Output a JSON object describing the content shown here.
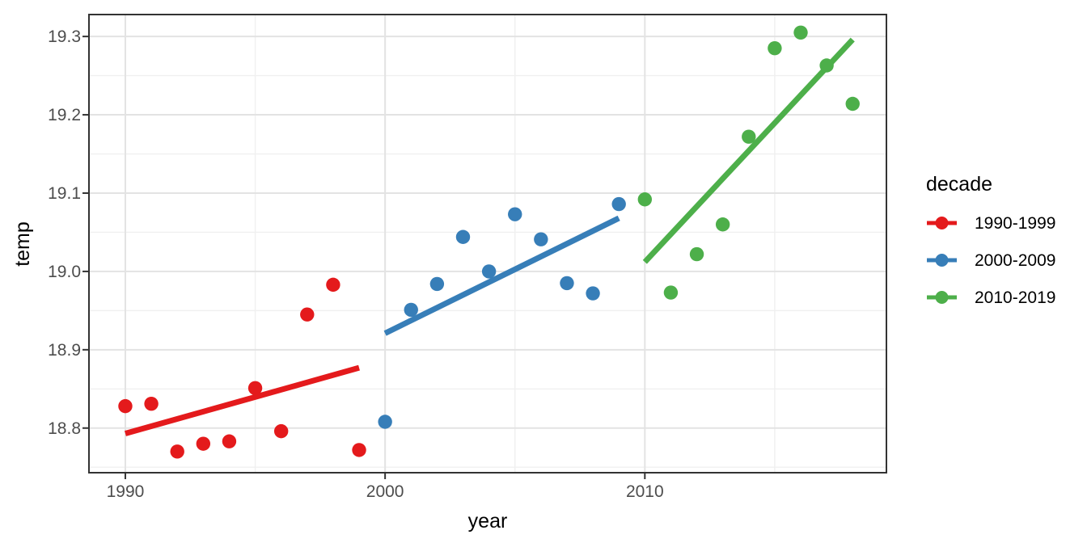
{
  "figure": {
    "background": "#FFFFFF",
    "theme": {
      "panel_border_color": "#333333",
      "grid_major_color": "#E3E3E3",
      "grid_minor_color": "#F0F0F0",
      "tick_mark_color": "#333333",
      "tick_label_color": "#4D4D4D",
      "axis_title_color": "#000000"
    }
  },
  "chart_data": {
    "type": "scatter",
    "title": "",
    "xlabel": "year",
    "ylabel": "temp",
    "xlim": [
      1988.6,
      2019.3
    ],
    "ylim": [
      18.743,
      19.328
    ],
    "grid": true,
    "x_tick_values": [
      1990,
      2000,
      2010
    ],
    "x_tick_labels": [
      "1990",
      "2000",
      "2010"
    ],
    "x_minor_values": [
      1995,
      2005,
      2015
    ],
    "y_tick_values": [
      18.8,
      18.9,
      19.0,
      19.1,
      19.2,
      19.3
    ],
    "y_tick_labels": [
      "18.8",
      "18.9",
      "19.0",
      "19.1",
      "19.2",
      "19.3"
    ],
    "y_minor_values": [
      18.75,
      18.85,
      18.95,
      19.05,
      19.15,
      19.25
    ],
    "legend": {
      "title": "decade",
      "position": "right",
      "entries": [
        "1990-1999",
        "2000-2009",
        "2010-2019"
      ]
    },
    "series": [
      {
        "name": "1990-1999",
        "color": "#E41A1C",
        "x": [
          1990,
          1991,
          1992,
          1993,
          1994,
          1995,
          1996,
          1997,
          1998,
          1999
        ],
        "y": [
          18.828,
          18.831,
          18.77,
          18.78,
          18.783,
          18.851,
          18.796,
          18.945,
          18.983,
          18.772
        ],
        "trend": {
          "x1": 1990,
          "y1": 18.793,
          "x2": 1999,
          "y2": 18.877
        }
      },
      {
        "name": "2000-2009",
        "color": "#377EB8",
        "x": [
          2000,
          2001,
          2002,
          2003,
          2004,
          2005,
          2006,
          2007,
          2008,
          2009
        ],
        "y": [
          18.808,
          18.951,
          18.984,
          19.044,
          19.0,
          19.073,
          19.041,
          18.985,
          18.972,
          19.086
        ],
        "trend": {
          "x1": 2000,
          "y1": 18.921,
          "x2": 2009,
          "y2": 19.068
        }
      },
      {
        "name": "2010-2019",
        "color": "#4DAF4A",
        "x": [
          2010,
          2011,
          2012,
          2013,
          2014,
          2015,
          2016,
          2017,
          2018
        ],
        "y": [
          19.092,
          18.973,
          19.022,
          19.06,
          19.172,
          19.285,
          19.305,
          19.263,
          19.214
        ],
        "trend": {
          "x1": 2010,
          "y1": 19.012,
          "x2": 2018,
          "y2": 19.296
        }
      }
    ]
  }
}
